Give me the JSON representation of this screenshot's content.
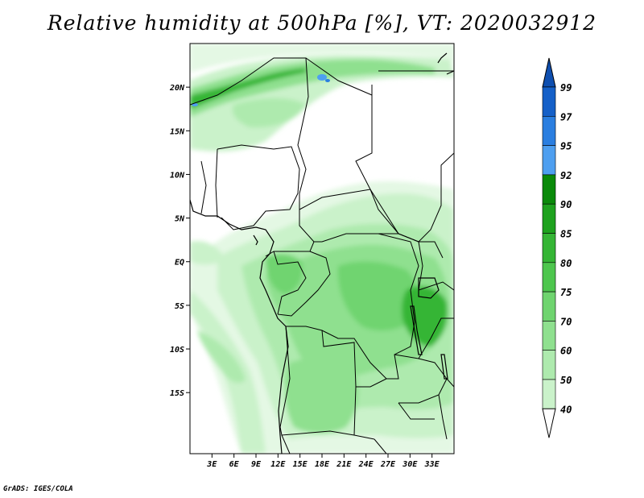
{
  "title": "Relative humidity at 500hPa [%], VT: 2020032912",
  "credit": "GrADS: IGES/COLA",
  "map": {
    "lon_range": [
      0,
      36
    ],
    "lat_range": [
      -22,
      25
    ],
    "lat_ticks": [
      {
        "value": 20,
        "label": "20N"
      },
      {
        "value": 15,
        "label": "15N"
      },
      {
        "value": 10,
        "label": "10N"
      },
      {
        "value": 5,
        "label": "5N"
      },
      {
        "value": 0,
        "label": "EQ"
      },
      {
        "value": -5,
        "label": "5S"
      },
      {
        "value": -10,
        "label": "10S"
      },
      {
        "value": -15,
        "label": "15S"
      }
    ],
    "lon_ticks": [
      {
        "value": 3,
        "label": "3E"
      },
      {
        "value": 6,
        "label": "6E"
      },
      {
        "value": 9,
        "label": "9E"
      },
      {
        "value": 12,
        "label": "12E"
      },
      {
        "value": 15,
        "label": "15E"
      },
      {
        "value": 18,
        "label": "18E"
      },
      {
        "value": 21,
        "label": "21E"
      },
      {
        "value": 24,
        "label": "24E"
      },
      {
        "value": 27,
        "label": "27E"
      },
      {
        "value": 30,
        "label": "30E"
      },
      {
        "value": 33,
        "label": "33E"
      }
    ]
  },
  "colorbar": {
    "levels": [
      {
        "label": "99",
        "color": "#1560c8"
      },
      {
        "label": "97",
        "color": "#2a7ee0"
      },
      {
        "label": "95",
        "color": "#4e9ff0"
      },
      {
        "label": "92",
        "color": "#0a8a0a"
      },
      {
        "label": "90",
        "color": "#1ea21e"
      },
      {
        "label": "85",
        "color": "#35b535"
      },
      {
        "label": "80",
        "color": "#4ec64e"
      },
      {
        "label": "75",
        "color": "#6fd46f"
      },
      {
        "label": "70",
        "color": "#8fe08f"
      },
      {
        "label": "60",
        "color": "#aeeaae"
      },
      {
        "label": "50",
        "color": "#caf2ca"
      },
      {
        "label": "40",
        "color": "#e4f8e4"
      }
    ],
    "top_arrow_color": "#0f4fb0",
    "bottom_color": "#ffffff"
  }
}
